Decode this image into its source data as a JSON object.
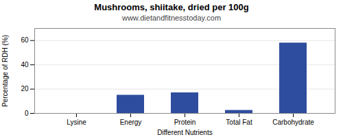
{
  "chart_data": {
    "type": "bar",
    "title": "Mushrooms, shiitake, dried per 100g",
    "subtitle": "www.dietandfitnesstoday.com",
    "xlabel": "Different Nutrients",
    "ylabel": "Percentage of RDH (%)",
    "categories": [
      "Lysine",
      "Energy",
      "Protein",
      "Total Fat",
      "Carbohydrate"
    ],
    "values": [
      0.0,
      15.0,
      17.0,
      2.5,
      58.0
    ],
    "color": "#2e4d9e",
    "ylim": [
      0,
      70
    ],
    "yticks": [
      0,
      20,
      40,
      60
    ],
    "grid": true
  }
}
